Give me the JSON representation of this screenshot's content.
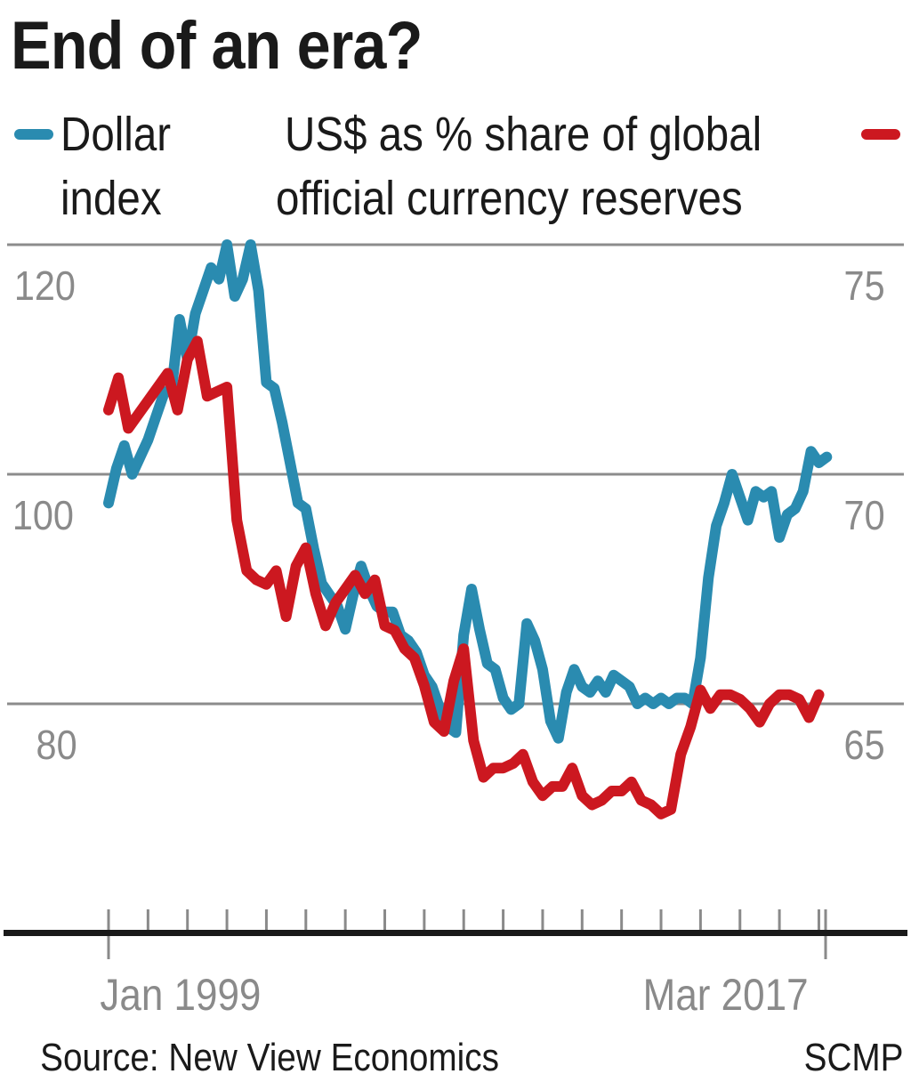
{
  "title": "End of an era?",
  "legend": {
    "left": {
      "line1": "Dollar",
      "line2": "index",
      "color": "#2a8bb0"
    },
    "right": {
      "line1": "US$ as % share of global",
      "line2": "official currency reserves",
      "color": "#cc1820"
    }
  },
  "axes": {
    "left_ticks": [
      "120",
      "100",
      "80"
    ],
    "right_ticks": [
      "75",
      "70",
      "65"
    ],
    "x_start": "Jan 1999",
    "x_end": "Mar 2017"
  },
  "footer": {
    "source": "Source: New View Economics",
    "credit": "SCMP"
  },
  "colors": {
    "blue": "#2a8bb0",
    "red": "#cc1820",
    "grid": "#8c8c8c",
    "axis": "#1a1a1a",
    "tick": "#8a8a8a"
  },
  "chart_data": {
    "type": "line",
    "title": "End of an era?",
    "xlabel": "",
    "x_range": [
      "Jan 1999",
      "Mar 2017"
    ],
    "ylabel_left": "Dollar index",
    "ylabel_right": "US$ as % share of global official currency reserves",
    "ylim_left": [
      80,
      120
    ],
    "ylim_right": [
      65,
      75
    ],
    "grid": true,
    "legend_position": "top",
    "series": [
      {
        "name": "Dollar index",
        "axis": "left",
        "color": "#2a8bb0",
        "x": [
          1999.0,
          1999.2,
          1999.4,
          1999.6,
          1999.8,
          2000.0,
          2000.2,
          2000.4,
          2000.6,
          2000.8,
          2001.0,
          2001.2,
          2001.4,
          2001.6,
          2001.8,
          2002.0,
          2002.2,
          2002.4,
          2002.6,
          2002.8,
          2003.0,
          2003.2,
          2003.4,
          2003.6,
          2003.8,
          2004.0,
          2004.2,
          2004.4,
          2004.6,
          2004.8,
          2005.0,
          2005.2,
          2005.4,
          2005.6,
          2005.8,
          2006.0,
          2006.2,
          2006.4,
          2006.6,
          2006.8,
          2007.0,
          2007.2,
          2007.4,
          2007.6,
          2007.8,
          2008.0,
          2008.2,
          2008.4,
          2008.6,
          2008.8,
          2009.0,
          2009.2,
          2009.4,
          2009.6,
          2009.8,
          2010.0,
          2010.2,
          2010.4,
          2010.6,
          2010.8,
          2011.0,
          2011.2,
          2011.4,
          2011.6,
          2011.8,
          2012.0,
          2012.2,
          2012.4,
          2012.6,
          2012.8,
          2013.0,
          2013.2,
          2013.4,
          2013.6,
          2013.8,
          2014.0,
          2014.2,
          2014.4,
          2014.6,
          2014.8,
          2015.0,
          2015.2,
          2015.4,
          2015.6,
          2015.8,
          2016.0,
          2016.2,
          2016.4,
          2016.6,
          2016.8,
          2017.0,
          2017.2
        ],
        "values": [
          97.5,
          100.5,
          102.5,
          100,
          101.5,
          103,
          105,
          107,
          107.5,
          113.5,
          110,
          114,
          116,
          118,
          117,
          120,
          115.5,
          117,
          120,
          116,
          108,
          107.5,
          104.5,
          101,
          97.5,
          97,
          93.5,
          90.5,
          89.5,
          88.5,
          86.5,
          89.5,
          92,
          90,
          88.5,
          88,
          88,
          86,
          85.5,
          84.5,
          82.5,
          81.5,
          79.5,
          78,
          77.5,
          86,
          90,
          86.5,
          83.5,
          83,
          80.5,
          79.5,
          80,
          87,
          85.5,
          83,
          78.5,
          77,
          81,
          83,
          81.5,
          81,
          82,
          81,
          82.5,
          82,
          81.5,
          80,
          80.5,
          80,
          80.5,
          80,
          80.5,
          80.5,
          80,
          84,
          91,
          95.5,
          97.5,
          100,
          98,
          96,
          98.5,
          98,
          98.5,
          94.5,
          96.5,
          97,
          98.5,
          102,
          101,
          101.5
        ]
      },
      {
        "name": "US$ as % share of global official currency reserves",
        "axis": "right",
        "color": "#cc1820",
        "x": [
          1999.0,
          1999.25,
          1999.5,
          1999.75,
          2000.0,
          2000.25,
          2000.5,
          2000.75,
          2001.0,
          2001.25,
          2001.5,
          2001.75,
          2002.0,
          2002.25,
          2002.5,
          2002.75,
          2003.0,
          2003.25,
          2003.5,
          2003.75,
          2004.0,
          2004.25,
          2004.5,
          2004.75,
          2005.0,
          2005.25,
          2005.5,
          2005.75,
          2006.0,
          2006.25,
          2006.5,
          2006.75,
          2007.0,
          2007.25,
          2007.5,
          2007.75,
          2008.0,
          2008.25,
          2008.5,
          2008.75,
          2009.0,
          2009.25,
          2009.5,
          2009.75,
          2010.0,
          2010.25,
          2010.5,
          2010.75,
          2011.0,
          2011.25,
          2011.5,
          2011.75,
          2012.0,
          2012.25,
          2012.5,
          2012.75,
          2013.0,
          2013.25,
          2013.5,
          2013.75,
          2014.0,
          2014.25,
          2014.5,
          2014.75,
          2015.0,
          2015.25,
          2015.5,
          2015.75,
          2016.0,
          2016.25,
          2016.5,
          2016.75,
          2017.0
        ],
        "values": [
          71.4,
          72.1,
          71.0,
          71.3,
          71.6,
          71.9,
          72.2,
          71.4,
          72.5,
          72.9,
          71.7,
          71.8,
          71.9,
          69.0,
          67.9,
          67.7,
          67.6,
          67.9,
          66.9,
          68.0,
          68.4,
          67.4,
          66.7,
          67.2,
          67.5,
          67.8,
          67.4,
          67.7,
          66.7,
          66.6,
          66.2,
          66.0,
          65.4,
          64.6,
          64.4,
          65.5,
          66.2,
          64.2,
          63.4,
          63.6,
          63.6,
          63.7,
          63.9,
          63.3,
          63.0,
          63.2,
          63.2,
          63.6,
          63.0,
          62.8,
          62.9,
          63.1,
          63.1,
          63.3,
          62.9,
          62.8,
          62.6,
          62.7,
          63.9,
          64.5,
          65.3,
          64.9,
          65.2,
          65.2,
          65.1,
          64.9,
          64.6,
          65.0,
          65.2,
          65.2,
          65.1,
          64.7,
          65.2
        ]
      }
    ]
  }
}
